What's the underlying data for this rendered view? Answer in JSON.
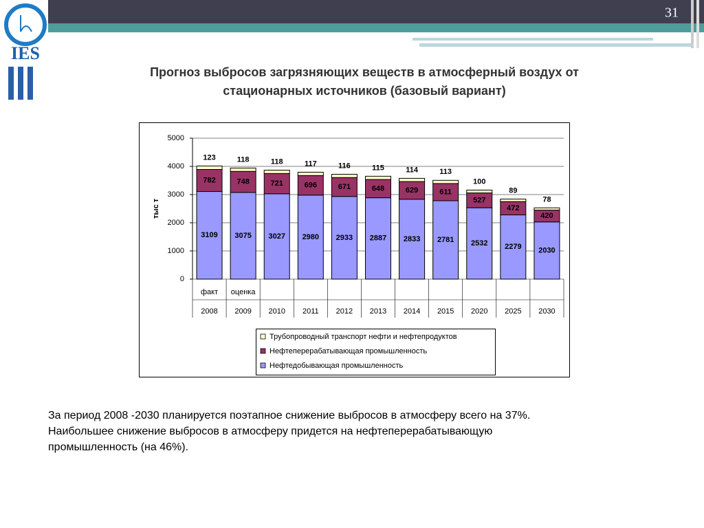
{
  "slide": {
    "number": "31",
    "logo_text": "IES",
    "title": [
      "Прогноз выбросов загрязняющих веществ в атмосферный воздух от",
      "стационарных источников (базовый вариант)"
    ],
    "body": [
      "За период 2008 -2030 планируется  поэтапное снижение выбросов в атмосферу всего на 37%.",
      "Наибольшее снижение выбросов в атмосферу придется на нефтеперерабатывающую",
      "промышленность (на 46%)."
    ]
  },
  "chart_data": {
    "type": "stacked_bar",
    "categories": [
      "2008",
      "2009",
      "2010",
      "2011",
      "2012",
      "2013",
      "2014",
      "2015",
      "2020",
      "2025",
      "2030"
    ],
    "category_notes": [
      "факт",
      "оценка",
      null,
      null,
      null,
      null,
      null,
      null,
      null,
      null,
      null
    ],
    "y_label": "тыс т",
    "ylim": [
      0,
      5000
    ],
    "yticks": [
      0,
      1000,
      2000,
      3000,
      4000,
      5000
    ],
    "grid": true,
    "series": [
      {
        "name": "Нефтедобывающая промышленность",
        "color": "#9999ff",
        "values": [
          3109,
          3075,
          3027,
          2980,
          2933,
          2887,
          2833,
          2781,
          2532,
          2279,
          2030
        ]
      },
      {
        "name": "Нефтеперерабатывающая промышленность",
        "color": "#993366",
        "values": [
          782,
          748,
          721,
          696,
          671,
          648,
          629,
          611,
          527,
          472,
          420
        ]
      },
      {
        "name": "Трубопроводный транспорт нефти и нефтепродуктов",
        "color": "#ffffcc",
        "values": [
          123,
          118,
          118,
          117,
          116,
          115,
          114,
          113,
          100,
          89,
          78
        ]
      }
    ]
  }
}
